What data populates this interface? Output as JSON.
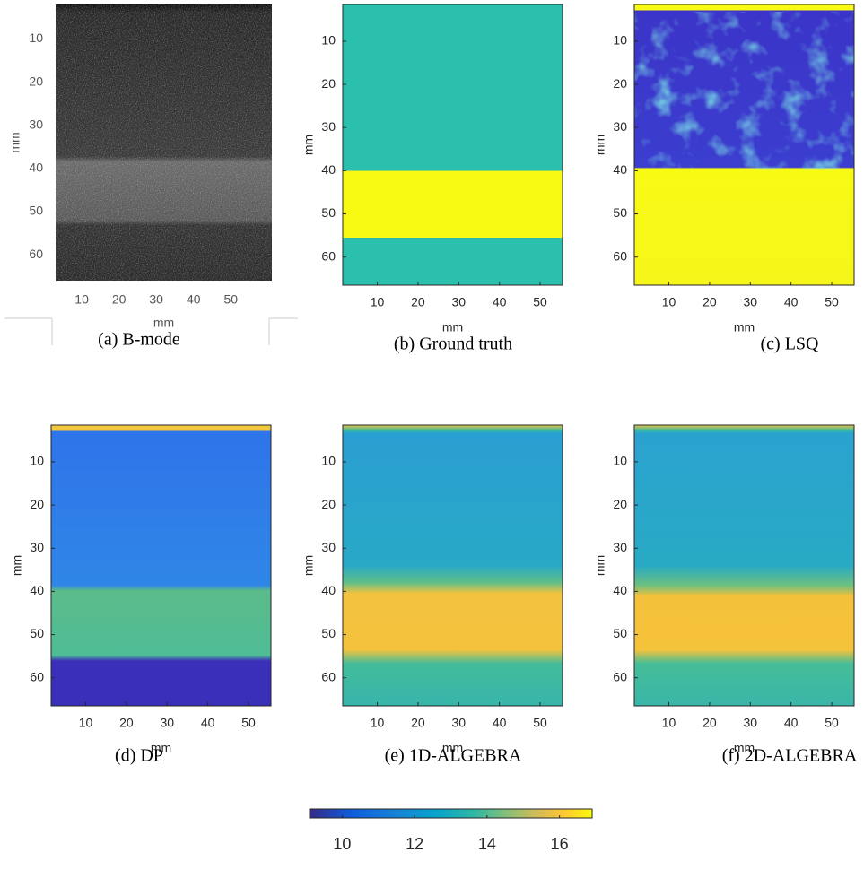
{
  "panels": [
    {
      "caption": "(a) B-mode",
      "xlabel": "mm",
      "ylabel": "mm",
      "xticks": [
        10,
        20,
        30,
        40,
        50
      ],
      "yticks": [
        10,
        20,
        30,
        40,
        50,
        60
      ],
      "xlim": [
        3,
        61
      ],
      "ylim": [
        2,
        66
      ]
    },
    {
      "caption": "(b) Ground truth",
      "xlabel": "mm",
      "ylabel": "mm",
      "xticks": [
        10,
        20,
        30,
        40,
        50
      ],
      "yticks": [
        10,
        20,
        30,
        40,
        50,
        60
      ],
      "xlim": [
        1.5,
        55.5
      ],
      "ylim": [
        1.5,
        66.5
      ]
    },
    {
      "caption": "(c) LSQ",
      "xlabel": "mm",
      "ylabel": "mm",
      "xticks": [
        10,
        20,
        30,
        40,
        50
      ],
      "yticks": [
        10,
        20,
        30,
        40,
        50,
        60
      ],
      "xlim": [
        1.5,
        55.5
      ],
      "ylim": [
        1.5,
        66.5
      ]
    },
    {
      "caption": "(d) DP",
      "xlabel": "mm",
      "ylabel": "mm",
      "xticks": [
        10,
        20,
        30,
        40,
        50
      ],
      "yticks": [
        10,
        20,
        30,
        40,
        50,
        60
      ],
      "xlim": [
        1.5,
        55.5
      ],
      "ylim": [
        1.5,
        66.5
      ]
    },
    {
      "caption": "(e) 1D-ALGEBRA",
      "xlabel": "mm",
      "ylabel": "mm",
      "xticks": [
        10,
        20,
        30,
        40,
        50
      ],
      "yticks": [
        10,
        20,
        30,
        40,
        50,
        60
      ],
      "xlim": [
        1.5,
        55.5
      ],
      "ylim": [
        1.5,
        66.5
      ]
    },
    {
      "caption": "(f) 2D-ALGEBRA",
      "xlabel": "mm",
      "ylabel": "mm",
      "xticks": [
        10,
        20,
        30,
        40,
        50
      ],
      "yticks": [
        10,
        20,
        30,
        40,
        50,
        60
      ],
      "xlim": [
        1.5,
        55.5
      ],
      "ylim": [
        1.5,
        66.5
      ]
    }
  ],
  "colorbar": {
    "ticks": [
      10,
      12,
      14,
      16
    ],
    "lim": [
      9.1,
      16.9
    ]
  }
}
